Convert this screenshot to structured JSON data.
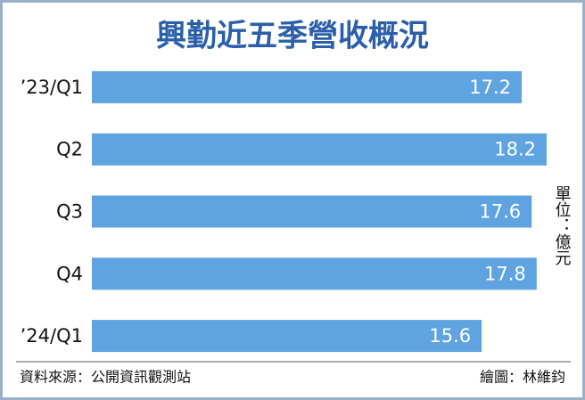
{
  "chart_data": {
    "type": "bar",
    "orientation": "horizontal",
    "title": "興勤近五季營收概況",
    "categories": [
      "’23/Q1",
      "Q2",
      "Q3",
      "Q4",
      "’24/Q1"
    ],
    "values": [
      17.2,
      18.2,
      17.6,
      17.8,
      15.6
    ],
    "color": "#5fa3e0",
    "unit": "單位：億元",
    "source": "資料來源：公開資訊觀測站",
    "credit": "繪圖：林維鈞"
  }
}
